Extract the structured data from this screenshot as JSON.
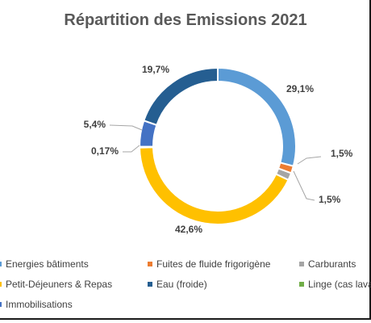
{
  "chart_data": {
    "type": "pie",
    "variant": "doughnut",
    "title": "Répartition des Emissions 2021",
    "categories": [
      "Energies bâtiments",
      "Fuites de fluide frigorigène",
      "Carburants",
      "Petit-Déjeuners & Repas",
      "Linge (cas lavage)",
      "Immobilisations",
      "Eau (froide)"
    ],
    "values": [
      29.1,
      1.5,
      1.5,
      42.6,
      0.17,
      5.4,
      19.7
    ],
    "data_labels": [
      "29,1%",
      "1,5%",
      "1,5%",
      "42,6%",
      "0,17%",
      "5,4%",
      "19,7%"
    ],
    "colors": [
      "#5B9BD5",
      "#ED7D31",
      "#A5A5A5",
      "#FFC000",
      "#70AD47",
      "#4472C4",
      "#255E91"
    ],
    "legend": {
      "position": "bottom",
      "items": [
        {
          "label": "Energies bâtiments",
          "color": "#5B9BD5"
        },
        {
          "label": "Fuites de fluide frigorigène",
          "color": "#ED7D31"
        },
        {
          "label": "Carburants",
          "color": "#A5A5A5"
        },
        {
          "label": "Petit-Déjeuners & Repas",
          "color": "#FFC000"
        },
        {
          "label": "Eau (froide)",
          "color": "#255E91"
        },
        {
          "label": "Linge (cas lavage)",
          "color": "#70AD47"
        },
        {
          "label": "Immobilisations",
          "color": "#4472C4"
        }
      ]
    }
  }
}
